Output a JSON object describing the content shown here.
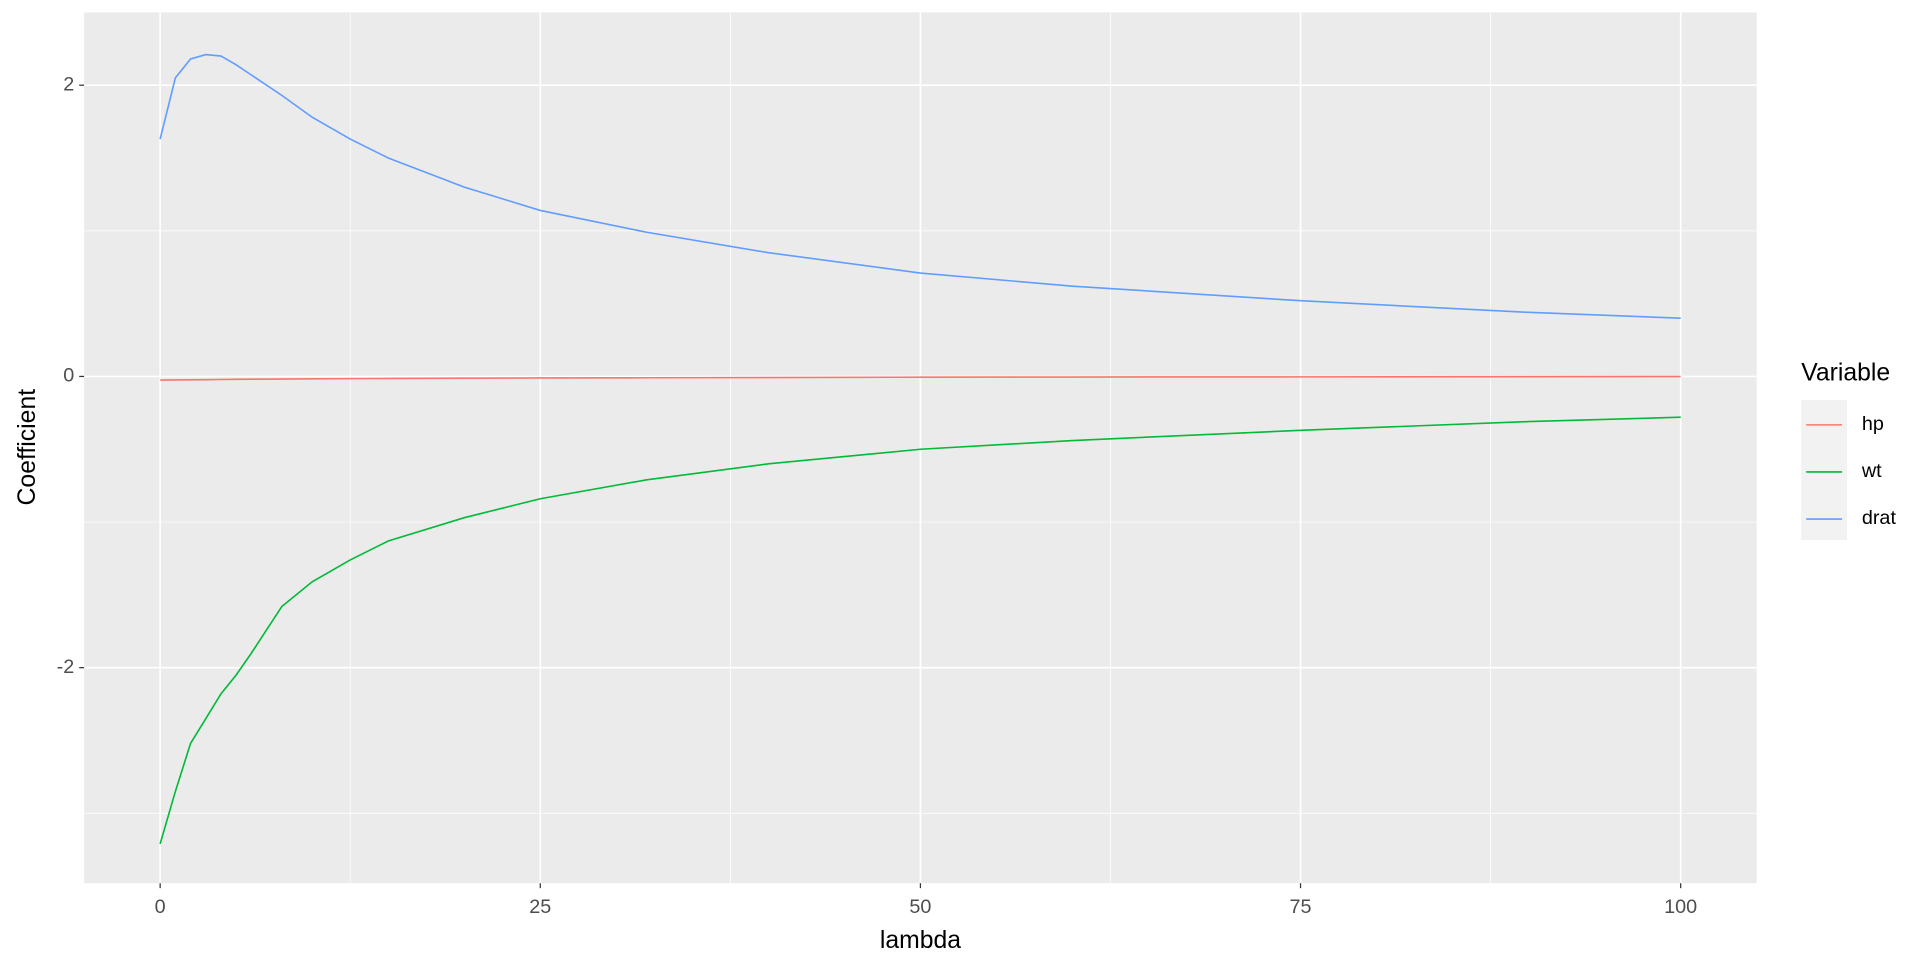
{
  "chart_data": {
    "type": "line",
    "x_label": "lambda",
    "y_label": "Coefficient",
    "legend_title": "Variable",
    "legend_position": "right",
    "x": [
      0,
      1,
      2,
      3,
      4,
      5,
      6,
      8,
      10,
      12.5,
      15,
      20,
      25,
      32,
      40,
      50,
      60,
      75,
      90,
      100
    ],
    "series": [
      {
        "name": "hp",
        "color": "#F8766D",
        "values": [
          -0.025,
          -0.024,
          -0.023,
          -0.022,
          -0.021,
          -0.02,
          -0.019,
          -0.018,
          -0.016,
          -0.015,
          -0.014,
          -0.012,
          -0.01,
          -0.009,
          -0.008,
          -0.005,
          -0.004,
          -0.003,
          -0.002,
          -0.001
        ]
      },
      {
        "name": "wt",
        "color": "#00BA38",
        "values": [
          -3.21,
          -2.85,
          -2.52,
          -2.35,
          -2.18,
          -2.05,
          -1.9,
          -1.58,
          -1.41,
          -1.26,
          -1.13,
          -0.97,
          -0.84,
          -0.71,
          -0.6,
          -0.5,
          -0.44,
          -0.37,
          -0.31,
          -0.28
        ]
      },
      {
        "name": "drat",
        "color": "#619CFF",
        "values": [
          1.63,
          2.05,
          2.18,
          2.21,
          2.2,
          2.14,
          2.07,
          1.93,
          1.78,
          1.63,
          1.5,
          1.3,
          1.14,
          0.99,
          0.85,
          0.71,
          0.62,
          0.52,
          0.44,
          0.4
        ]
      }
    ],
    "xlim": [
      -5,
      105
    ],
    "xticks": [
      0,
      25,
      50,
      75,
      100
    ],
    "ylim": [
      -3.48,
      2.5
    ],
    "yticks": [
      -2,
      0,
      2
    ],
    "grid": true
  }
}
